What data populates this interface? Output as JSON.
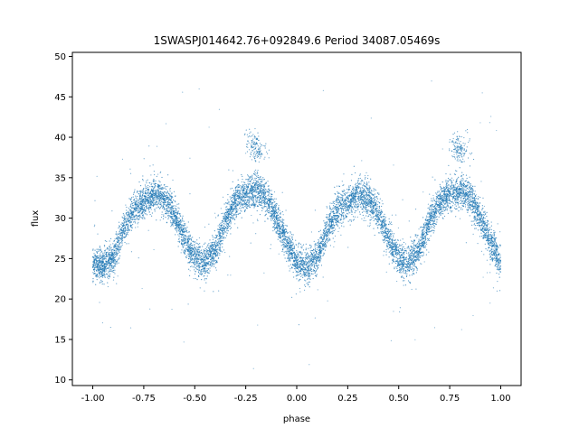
{
  "chart_data": {
    "type": "scatter",
    "title": "1SWASPJ014642.76+092849.6 Period 34087.05469s",
    "xlabel": "phase",
    "ylabel": "flux",
    "xlim": [
      -1.1,
      1.1
    ],
    "ylim": [
      9.3,
      50.5
    ],
    "xticks": [
      "-1.00",
      "-0.75",
      "-0.50",
      "-0.25",
      "0.00",
      "0.25",
      "0.50",
      "0.75",
      "1.00"
    ],
    "xtick_values": [
      -1.0,
      -0.75,
      -0.5,
      -0.25,
      0.0,
      0.25,
      0.5,
      0.75,
      1.0
    ],
    "yticks": [
      "10",
      "15",
      "20",
      "25",
      "30",
      "35",
      "40",
      "45",
      "50"
    ],
    "ytick_values": [
      10,
      15,
      20,
      25,
      30,
      35,
      40,
      45,
      50
    ],
    "grid": false,
    "marker_color": "#1f77b4",
    "series": [
      {
        "name": "",
        "description_points": [
          {
            "x": -1.0,
            "y": 24.5
          },
          {
            "x": -0.95,
            "y": 24.0
          },
          {
            "x": -0.9,
            "y": 25.0
          },
          {
            "x": -0.85,
            "y": 28.5
          },
          {
            "x": -0.8,
            "y": 31.0
          },
          {
            "x": -0.75,
            "y": 32.0
          },
          {
            "x": -0.7,
            "y": 33.0
          },
          {
            "x": -0.65,
            "y": 32.5
          },
          {
            "x": -0.6,
            "y": 30.5
          },
          {
            "x": -0.55,
            "y": 27.5
          },
          {
            "x": -0.5,
            "y": 25.0
          },
          {
            "x": -0.45,
            "y": 24.5
          },
          {
            "x": -0.4,
            "y": 26.0
          },
          {
            "x": -0.35,
            "y": 29.5
          },
          {
            "x": -0.3,
            "y": 32.0
          },
          {
            "x": -0.25,
            "y": 33.0
          },
          {
            "x": -0.2,
            "y": 33.5
          },
          {
            "x": -0.15,
            "y": 32.5
          },
          {
            "x": -0.1,
            "y": 30.0
          },
          {
            "x": -0.05,
            "y": 27.0
          },
          {
            "x": 0.0,
            "y": 24.5
          },
          {
            "x": 0.05,
            "y": 24.0
          },
          {
            "x": 0.1,
            "y": 25.0
          },
          {
            "x": 0.15,
            "y": 28.5
          },
          {
            "x": 0.2,
            "y": 31.0
          },
          {
            "x": 0.25,
            "y": 32.0
          },
          {
            "x": 0.3,
            "y": 33.0
          },
          {
            "x": 0.35,
            "y": 32.5
          },
          {
            "x": 0.4,
            "y": 30.5
          },
          {
            "x": 0.45,
            "y": 27.5
          },
          {
            "x": 0.5,
            "y": 25.0
          },
          {
            "x": 0.55,
            "y": 24.5
          },
          {
            "x": 0.6,
            "y": 26.0
          },
          {
            "x": 0.65,
            "y": 29.5
          },
          {
            "x": 0.7,
            "y": 32.0
          },
          {
            "x": 0.75,
            "y": 33.0
          },
          {
            "x": 0.8,
            "y": 33.5
          },
          {
            "x": 0.85,
            "y": 32.5
          },
          {
            "x": 0.9,
            "y": 30.0
          },
          {
            "x": 0.95,
            "y": 27.0
          },
          {
            "x": 1.0,
            "y": 24.5
          }
        ],
        "flare_clusters": [
          {
            "x": -0.21,
            "y": 40.0
          },
          {
            "x": -0.19,
            "y": 39.5
          },
          {
            "x": 0.79,
            "y": 40.0
          },
          {
            "x": 0.81,
            "y": 39.5
          }
        ]
      }
    ]
  }
}
